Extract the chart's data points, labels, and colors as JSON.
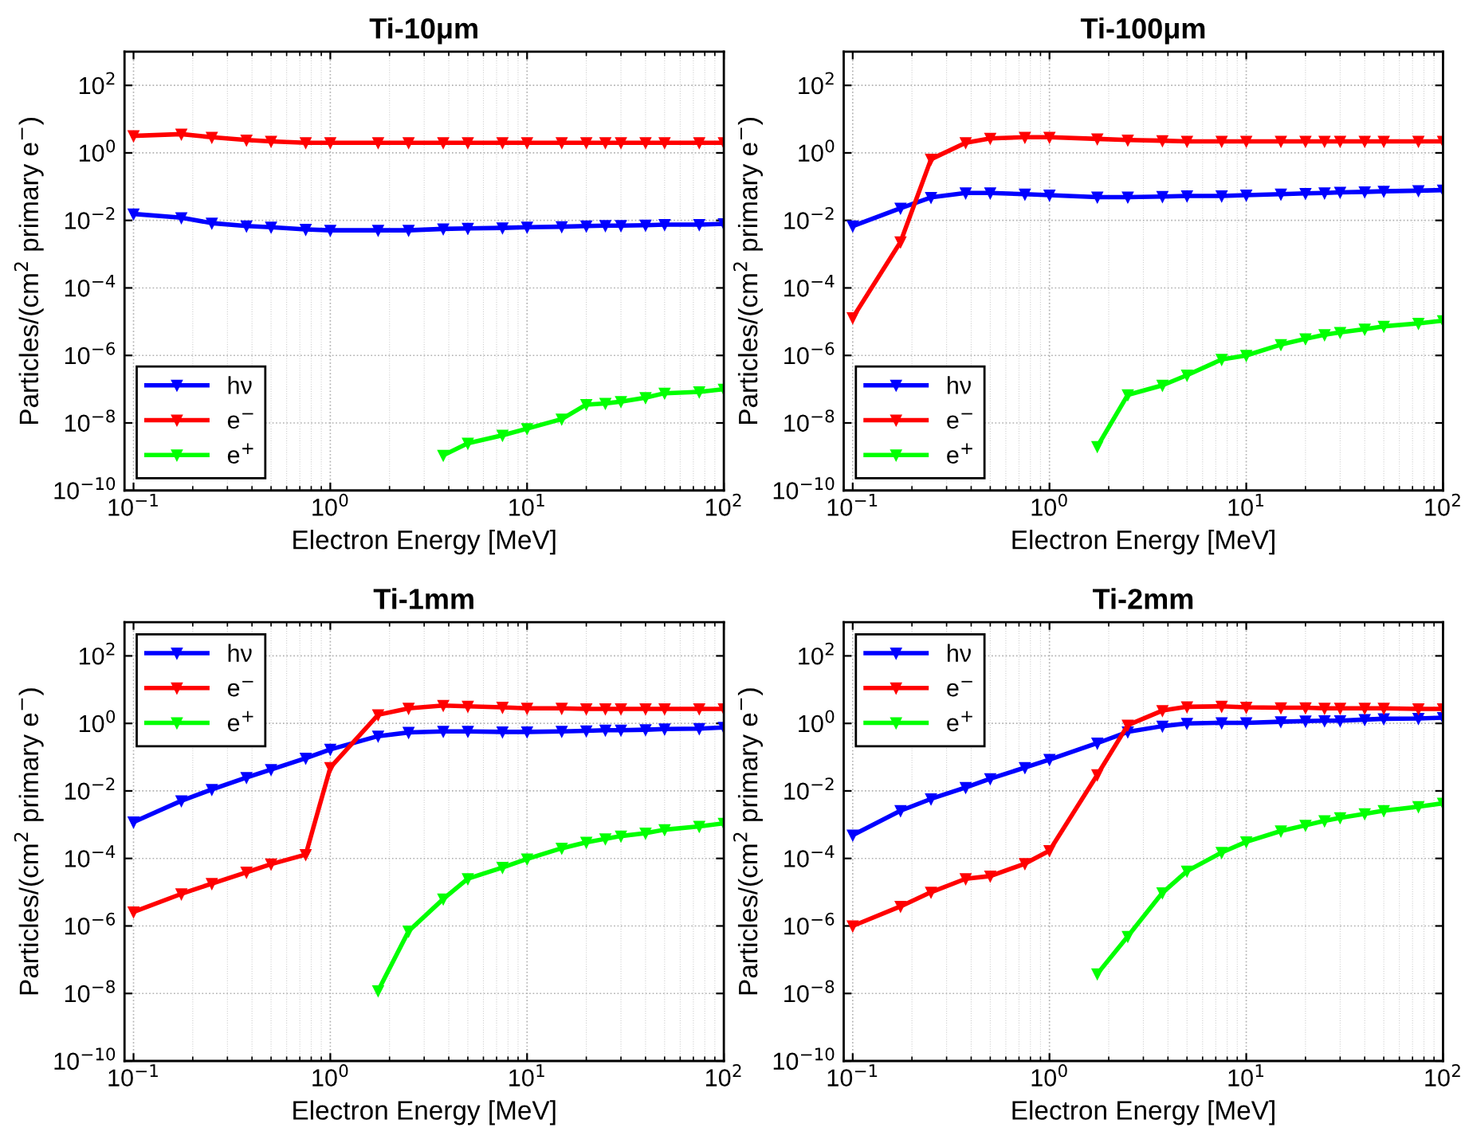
{
  "chart_data": [
    {
      "type": "line",
      "title": "Ti-10μm",
      "xlabel": "Electron Energy [MeV]",
      "ylabel": "Particles/(cm$^{2}$ primary e$^{−}$)",
      "log": "xy",
      "grid": true,
      "legend": "bottom left",
      "marker": "triangle",
      "line_style": "solid",
      "xlim": [
        0.09,
        100
      ],
      "ylim": [
        1e-10,
        1000
      ],
      "xticks": [
        {
          "value": 0.1,
          "label": "10$^{−1}$"
        },
        {
          "value": 1,
          "label": "10$^{0}$"
        },
        {
          "value": 10,
          "label": "10$^{1}$"
        },
        {
          "value": 100,
          "label": "10$^{2}$"
        }
      ],
      "yticks": [
        {
          "value": 1e-10,
          "label": "10$^{−10}$"
        },
        {
          "value": 1e-08,
          "label": "10$^{−8}$"
        },
        {
          "value": 1e-06,
          "label": "10$^{−6}$"
        },
        {
          "value": 0.0001,
          "label": "10$^{−4}$"
        },
        {
          "value": 0.01,
          "label": "10$^{−2}$"
        },
        {
          "value": 1,
          "label": "10$^{0}$"
        },
        {
          "value": 100,
          "label": "10$^{2}$"
        }
      ],
      "x": [
        0.1,
        0.175,
        0.25,
        0.375,
        0.5,
        0.75,
        1,
        1.75,
        2.5,
        3.75,
        5,
        7.5,
        10,
        15,
        20,
        25,
        30,
        40,
        50,
        75,
        100
      ],
      "series": [
        {
          "name": "hν",
          "color": "#0000ff",
          "values": [
            0.0155,
            0.012,
            0.0083,
            0.0068,
            0.0063,
            0.0054,
            0.0051,
            0.0051,
            0.0051,
            0.0056,
            0.0058,
            0.006,
            0.0063,
            0.0065,
            0.0068,
            0.007,
            0.007,
            0.0072,
            0.0075,
            0.0075,
            0.0079
          ]
        },
        {
          "name": "e$^{−}$",
          "color": "#ff0000",
          "values": [
            3.2,
            3.6,
            2.9,
            2.4,
            2.2,
            2.0,
            2.0,
            2.0,
            2.0,
            2.0,
            2.0,
            2.0,
            2.0,
            2.0,
            2.0,
            2.0,
            2.0,
            2.0,
            2.0,
            2.0,
            2.0
          ]
        },
        {
          "name": "e$^{+}$",
          "color": "#00ff00",
          "values": [
            null,
            null,
            null,
            null,
            null,
            null,
            null,
            null,
            null,
            1.1e-09,
            2.5e-09,
            4.3e-09,
            6.8e-09,
            1.3e-08,
            3.5e-08,
            3.8e-08,
            4.3e-08,
            5.6e-08,
            7.6e-08,
            8.3e-08,
            1e-07
          ]
        }
      ]
    },
    {
      "type": "line",
      "title": "Ti-100μm",
      "xlabel": "Electron Energy [MeV]",
      "ylabel": "Particles/(cm$^{2}$ primary e$^{−}$)",
      "log": "xy",
      "grid": true,
      "legend": "bottom left",
      "marker": "triangle",
      "line_style": "solid",
      "xlim": [
        0.09,
        100
      ],
      "ylim": [
        1e-10,
        1000
      ],
      "xticks": [
        {
          "value": 0.1,
          "label": "10$^{−1}$"
        },
        {
          "value": 1,
          "label": "10$^{0}$"
        },
        {
          "value": 10,
          "label": "10$^{1}$"
        },
        {
          "value": 100,
          "label": "10$^{2}$"
        }
      ],
      "yticks": [
        {
          "value": 1e-10,
          "label": "10$^{−10}$"
        },
        {
          "value": 1e-08,
          "label": "10$^{−8}$"
        },
        {
          "value": 1e-06,
          "label": "10$^{−6}$"
        },
        {
          "value": 0.0001,
          "label": "10$^{−4}$"
        },
        {
          "value": 0.01,
          "label": "10$^{−2}$"
        },
        {
          "value": 1,
          "label": "10$^{0}$"
        },
        {
          "value": 100,
          "label": "10$^{2}$"
        }
      ],
      "x": [
        0.1,
        0.175,
        0.25,
        0.375,
        0.5,
        0.75,
        1,
        1.75,
        2.5,
        3.75,
        5,
        7.5,
        10,
        15,
        20,
        25,
        30,
        40,
        50,
        75,
        100
      ],
      "series": [
        {
          "name": "hν",
          "color": "#0000ff",
          "values": [
            0.0068,
            0.023,
            0.048,
            0.065,
            0.065,
            0.06,
            0.056,
            0.049,
            0.049,
            0.051,
            0.053,
            0.053,
            0.056,
            0.06,
            0.063,
            0.065,
            0.068,
            0.07,
            0.073,
            0.076,
            0.079
          ]
        },
        {
          "name": "e$^{−}$",
          "color": "#ff0000",
          "values": [
            1.3e-05,
            0.0023,
            0.65,
            2.0,
            2.7,
            2.9,
            2.9,
            2.6,
            2.4,
            2.3,
            2.2,
            2.2,
            2.2,
            2.2,
            2.2,
            2.2,
            2.2,
            2.2,
            2.2,
            2.2,
            2.2
          ]
        },
        {
          "name": "e$^{+}$",
          "color": "#00ff00",
          "values": [
            null,
            null,
            null,
            null,
            null,
            null,
            null,
            2e-09,
            6.8e-08,
            1.3e-07,
            2.6e-07,
            7.6e-07,
            1e-06,
            2.1e-06,
            3.1e-06,
            4.1e-06,
            4.8e-06,
            6e-06,
            7.3e-06,
            8.9e-06,
            1.07e-05
          ]
        }
      ]
    },
    {
      "type": "line",
      "title": "Ti-1mm",
      "xlabel": "Electron Energy [MeV]",
      "ylabel": "Particles/(cm$^{2}$ primary e$^{−}$)",
      "log": "xy",
      "grid": true,
      "legend": "top left",
      "marker": "triangle",
      "line_style": "solid",
      "xlim": [
        0.09,
        100
      ],
      "ylim": [
        1e-10,
        1000
      ],
      "xticks": [
        {
          "value": 0.1,
          "label": "10$^{−1}$"
        },
        {
          "value": 1,
          "label": "10$^{0}$"
        },
        {
          "value": 10,
          "label": "10$^{1}$"
        },
        {
          "value": 100,
          "label": "10$^{2}$"
        }
      ],
      "yticks": [
        {
          "value": 1e-10,
          "label": "10$^{−10}$"
        },
        {
          "value": 1e-08,
          "label": "10$^{−8}$"
        },
        {
          "value": 1e-06,
          "label": "10$^{−6}$"
        },
        {
          "value": 0.0001,
          "label": "10$^{−4}$"
        },
        {
          "value": 0.01,
          "label": "10$^{−2}$"
        },
        {
          "value": 1,
          "label": "10$^{0}$"
        },
        {
          "value": 100,
          "label": "10$^{2}$"
        }
      ],
      "x": [
        0.1,
        0.175,
        0.25,
        0.375,
        0.5,
        0.75,
        1,
        1.75,
        2.5,
        3.75,
        5,
        7.5,
        10,
        15,
        20,
        25,
        30,
        40,
        50,
        75,
        100
      ],
      "series": [
        {
          "name": "hν",
          "color": "#0000ff",
          "values": [
            0.0012,
            0.0051,
            0.011,
            0.025,
            0.043,
            0.093,
            0.17,
            0.42,
            0.54,
            0.58,
            0.58,
            0.56,
            0.56,
            0.58,
            0.6,
            0.63,
            0.63,
            0.65,
            0.68,
            0.7,
            0.76
          ]
        },
        {
          "name": "e$^{−}$",
          "color": "#ff0000",
          "values": [
            2.6e-06,
            8.9e-06,
            1.8e-05,
            3.9e-05,
            6.8e-05,
            0.00013,
            0.049,
            1.8,
            2.8,
            3.4,
            3.2,
            3.0,
            2.8,
            2.8,
            2.7,
            2.7,
            2.7,
            2.7,
            2.7,
            2.7,
            2.7
          ]
        },
        {
          "name": "e$^{+}$",
          "color": "#00ff00",
          "values": [
            null,
            null,
            null,
            null,
            null,
            null,
            null,
            1.2e-08,
            7e-07,
            6.3e-06,
            2.5e-05,
            5.4e-05,
            9.6e-05,
            0.0002,
            0.0003,
            0.00038,
            0.00046,
            0.00056,
            0.00071,
            0.00089,
            0.0011
          ]
        }
      ]
    },
    {
      "type": "line",
      "title": "Ti-2mm",
      "xlabel": "Electron Energy [MeV]",
      "ylabel": "Particles/(cm$^{2}$ primary e$^{−}$)",
      "log": "xy",
      "grid": true,
      "legend": "top left",
      "marker": "triangle",
      "line_style": "solid",
      "xlim": [
        0.09,
        100
      ],
      "ylim": [
        1e-10,
        1000
      ],
      "xticks": [
        {
          "value": 0.1,
          "label": "10$^{−1}$"
        },
        {
          "value": 1,
          "label": "10$^{0}$"
        },
        {
          "value": 10,
          "label": "10$^{1}$"
        },
        {
          "value": 100,
          "label": "10$^{2}$"
        }
      ],
      "yticks": [
        {
          "value": 1e-10,
          "label": "10$^{−10}$"
        },
        {
          "value": 1e-08,
          "label": "10$^{−8}$"
        },
        {
          "value": 1e-06,
          "label": "10$^{−6}$"
        },
        {
          "value": 0.0001,
          "label": "10$^{−4}$"
        },
        {
          "value": 0.01,
          "label": "10$^{−2}$"
        },
        {
          "value": 1,
          "label": "10$^{0}$"
        },
        {
          "value": 100,
          "label": "10$^{2}$"
        }
      ],
      "x": [
        0.1,
        0.175,
        0.25,
        0.375,
        0.5,
        0.75,
        1,
        1.75,
        2.5,
        3.75,
        5,
        7.5,
        10,
        15,
        20,
        25,
        30,
        40,
        50,
        75,
        100
      ],
      "series": [
        {
          "name": "hν",
          "color": "#0000ff",
          "values": [
            0.00049,
            0.0026,
            0.0058,
            0.0126,
            0.023,
            0.049,
            0.085,
            0.26,
            0.56,
            0.83,
            1.0,
            1.04,
            1.04,
            1.12,
            1.17,
            1.2,
            1.2,
            1.3,
            1.37,
            1.4,
            1.48
          ]
        },
        {
          "name": "e$^{−}$",
          "color": "#ff0000",
          "values": [
            1e-06,
            3.8e-06,
            1e-05,
            2.5e-05,
            3e-05,
            7e-05,
            0.00017,
            0.03,
            0.89,
            2.4,
            3.1,
            3.2,
            3.0,
            2.9,
            2.9,
            2.8,
            2.8,
            2.8,
            2.8,
            2.7,
            2.7
          ]
        },
        {
          "name": "e$^{+}$",
          "color": "#00ff00",
          "values": [
            null,
            null,
            null,
            null,
            null,
            null,
            null,
            3.8e-08,
            4.9e-07,
            9.6e-06,
            4.2e-05,
            0.00015,
            0.00031,
            0.00065,
            0.00096,
            0.0013,
            0.0016,
            0.0021,
            0.0026,
            0.0034,
            0.0043
          ]
        }
      ]
    }
  ]
}
